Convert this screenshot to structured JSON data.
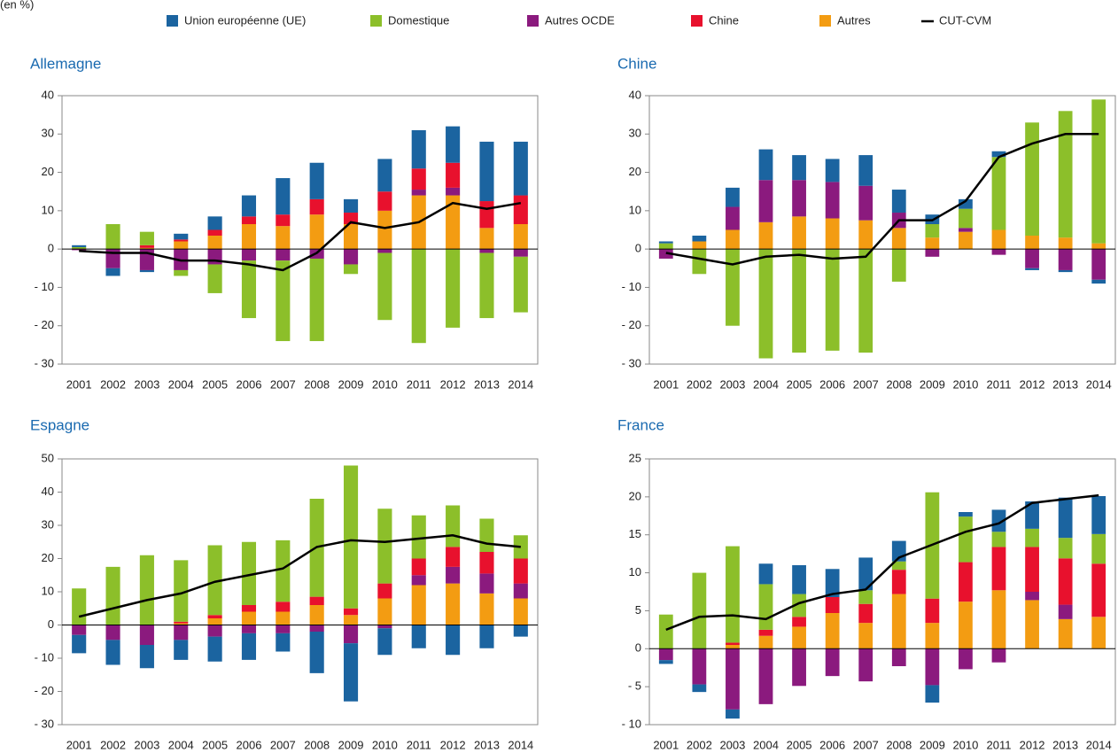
{
  "unit_label": "(en %)",
  "chart_data": [
    {
      "type": "bar",
      "stacked": true,
      "title": "Allemagne",
      "categories": [
        "2001",
        "2002",
        "2003",
        "2004",
        "2005",
        "2006",
        "2007",
        "2008",
        "2009",
        "2010",
        "2011",
        "2012",
        "2013",
        "2014"
      ],
      "ylim": [
        -30,
        40
      ],
      "yticks": [
        {
          "value": -30,
          "label": "- 30"
        },
        {
          "value": -20,
          "label": "- 20"
        },
        {
          "value": -10,
          "label": "- 10"
        },
        0,
        10,
        20,
        30,
        40
      ],
      "series": [
        {
          "name": "Union européenne (UE)",
          "color": "#1b64a0",
          "values": [
            0.5,
            -2,
            -0.5,
            1.5,
            3.5,
            5.5,
            9.5,
            9.5,
            3.5,
            8.5,
            10,
            9.5,
            15.5,
            14
          ]
        },
        {
          "name": "Domestique",
          "color": "#8cbf2a",
          "values": [
            0.5,
            6.5,
            3.5,
            -1.5,
            -7.5,
            -15,
            -21,
            -21.5,
            -2.5,
            -17.5,
            -24.5,
            -20.5,
            -17,
            -14.5
          ]
        },
        {
          "name": "Autres OCDE",
          "color": "#8b1a7e",
          "values": [
            -0.3,
            -5,
            -5.5,
            -5.5,
            -4,
            -3,
            -3,
            -2.5,
            -4,
            -1,
            1.5,
            2,
            -1,
            -2
          ]
        },
        {
          "name": "Chine",
          "color": "#e8112d",
          "values": [
            0,
            0,
            0.7,
            0.5,
            1.5,
            2,
            3,
            4,
            3,
            5,
            5.5,
            6.5,
            7,
            7.5
          ]
        },
        {
          "name": "Autres",
          "color": "#f39c12",
          "values": [
            0,
            0,
            0.3,
            2,
            3.5,
            6.5,
            6,
            9,
            6.5,
            10,
            14,
            14,
            5.5,
            6.5
          ]
        },
        {
          "name": "CUT-CVM",
          "color": "#000000",
          "type": "line",
          "values": [
            -0.5,
            -1,
            -1,
            -3,
            -3,
            -4,
            -5.5,
            -1,
            7,
            5.5,
            7,
            12,
            10.5,
            12
          ]
        }
      ]
    },
    {
      "type": "bar",
      "stacked": true,
      "title": "Chine",
      "categories": [
        "2001",
        "2002",
        "2003",
        "2004",
        "2005",
        "2006",
        "2007",
        "2008",
        "2009",
        "2010",
        "2011",
        "2012",
        "2013",
        "2014"
      ],
      "ylim": [
        -30,
        40
      ],
      "yticks": [
        {
          "value": -30,
          "label": "- 30"
        },
        {
          "value": -20,
          "label": "- 20"
        },
        {
          "value": -10,
          "label": "- 10"
        },
        0,
        10,
        20,
        30,
        40
      ],
      "series": [
        {
          "name": "Union européenne (UE)",
          "color": "#1b64a0",
          "values": [
            0.5,
            1.5,
            5,
            8,
            6.5,
            6,
            8,
            6,
            2.5,
            2.5,
            1.5,
            -0.5,
            -0.5,
            -1
          ]
        },
        {
          "name": "Domestique",
          "color": "#8cbf2a",
          "values": [
            1.5,
            -6.5,
            -20,
            -28.5,
            -27,
            -26.5,
            -27,
            -8.5,
            3.5,
            5,
            19,
            29.5,
            33,
            37.5
          ]
        },
        {
          "name": "Autres OCDE",
          "color": "#8b1a7e",
          "values": [
            -2.5,
            0,
            6,
            11,
            9.5,
            9.5,
            9,
            4,
            -2,
            1,
            -1.5,
            -5,
            -5.5,
            -8
          ]
        },
        {
          "name": "Chine",
          "color": "#e8112d",
          "values": [
            0,
            0,
            0,
            0,
            0,
            0,
            0,
            0,
            0,
            0,
            0,
            0,
            0,
            0
          ]
        },
        {
          "name": "Autres",
          "color": "#f39c12",
          "values": [
            0,
            2,
            5,
            7,
            8.5,
            8,
            7.5,
            5.5,
            3,
            4.5,
            5,
            3.5,
            3,
            1.5
          ]
        },
        {
          "name": "CUT-CVM",
          "color": "#000000",
          "type": "line",
          "values": [
            -1,
            -2.5,
            -4,
            -2,
            -1.5,
            -2.5,
            -2,
            7.5,
            7.5,
            12.5,
            24,
            27.5,
            30,
            30
          ]
        }
      ]
    },
    {
      "type": "bar",
      "stacked": true,
      "title": "Espagne",
      "categories": [
        "2001",
        "2002",
        "2003",
        "2004",
        "2005",
        "2006",
        "2007",
        "2008",
        "2009",
        "2010",
        "2011",
        "2012",
        "2013",
        "2014"
      ],
      "ylim": [
        -30,
        50
      ],
      "yticks": [
        {
          "value": -30,
          "label": "- 30"
        },
        {
          "value": -20,
          "label": "- 20"
        },
        {
          "value": -10,
          "label": "- 10"
        },
        0,
        10,
        20,
        30,
        40,
        50
      ],
      "series": [
        {
          "name": "Union européenne (UE)",
          "color": "#1b64a0",
          "values": [
            -5.5,
            -7.5,
            -7,
            -6,
            -7.5,
            -8,
            -5.5,
            -12.5,
            -17.5,
            -8,
            -7,
            -9,
            -7,
            -3.5
          ]
        },
        {
          "name": "Domestique",
          "color": "#8cbf2a",
          "values": [
            11,
            17.5,
            21,
            18.5,
            21,
            19,
            18.5,
            29.5,
            43,
            22.5,
            13,
            12.5,
            10,
            7
          ]
        },
        {
          "name": "Autres OCDE",
          "color": "#8b1a7e",
          "values": [
            -3,
            -4.5,
            -6,
            -4.5,
            -3.5,
            -2.5,
            -2.5,
            -2,
            -5.5,
            -1,
            3,
            5,
            6,
            4.5
          ]
        },
        {
          "name": "Chine",
          "color": "#e8112d",
          "values": [
            0,
            0,
            0,
            0.5,
            1,
            2,
            3,
            2.5,
            2,
            4.5,
            5,
            6,
            6.5,
            7.5
          ]
        },
        {
          "name": "Autres",
          "color": "#f39c12",
          "values": [
            0,
            0,
            0,
            0.5,
            2,
            4,
            4,
            6,
            3,
            8,
            12,
            12.5,
            9.5,
            8
          ]
        },
        {
          "name": "CUT-CVM",
          "color": "#000000",
          "type": "line",
          "values": [
            2.5,
            5,
            7.5,
            9.5,
            13,
            15,
            17,
            23.5,
            25.5,
            25,
            26,
            27,
            24.5,
            23.5
          ]
        }
      ]
    },
    {
      "type": "bar",
      "stacked": true,
      "title": "France",
      "categories": [
        "2001",
        "2002",
        "2003",
        "2004",
        "2005",
        "2006",
        "2007",
        "2008",
        "2009",
        "2010",
        "2011",
        "2012",
        "2013",
        "2014"
      ],
      "ylim": [
        -10,
        25
      ],
      "yticks": [
        {
          "value": -10,
          "label": "- 10"
        },
        {
          "value": -5,
          "label": "- 5"
        },
        0,
        5,
        10,
        15,
        20,
        25
      ],
      "series": [
        {
          "name": "Union européenne (UE)",
          "color": "#1b64a0",
          "values": [
            -0.5,
            -1,
            -1.2,
            2.7,
            3.8,
            3.7,
            4.3,
            2.7,
            -2.3,
            0.6,
            2.9,
            3.6,
            5.3,
            5
          ]
        },
        {
          "name": "Domestique",
          "color": "#8cbf2a",
          "values": [
            4.5,
            10,
            12.7,
            6,
            3,
            0,
            1.8,
            1.1,
            14,
            6,
            2,
            2.4,
            2.7,
            3.9
          ]
        },
        {
          "name": "Autres OCDE",
          "color": "#8b1a7e",
          "values": [
            -1.5,
            -4.7,
            -8,
            -7.3,
            -4.9,
            -3.6,
            -4.3,
            -2.3,
            -4.8,
            -2.7,
            -1.8,
            1.1,
            1.9,
            0
          ]
        },
        {
          "name": "Chine",
          "color": "#e8112d",
          "values": [
            0,
            0,
            0.3,
            0.8,
            1.3,
            2.1,
            2.5,
            3.2,
            3.2,
            5.2,
            5.7,
            5.9,
            6.1,
            7
          ]
        },
        {
          "name": "Autres",
          "color": "#f39c12",
          "values": [
            0,
            0,
            0.5,
            1.7,
            2.9,
            4.7,
            3.4,
            7.2,
            3.4,
            6.2,
            7.7,
            6.4,
            3.9,
            4.2
          ]
        },
        {
          "name": "CUT-CVM",
          "color": "#000000",
          "type": "line",
          "values": [
            2.5,
            4.2,
            4.4,
            3.9,
            6,
            7.2,
            7.8,
            12,
            13.7,
            15.4,
            16.5,
            19.2,
            19.7,
            20.2
          ]
        }
      ]
    }
  ]
}
